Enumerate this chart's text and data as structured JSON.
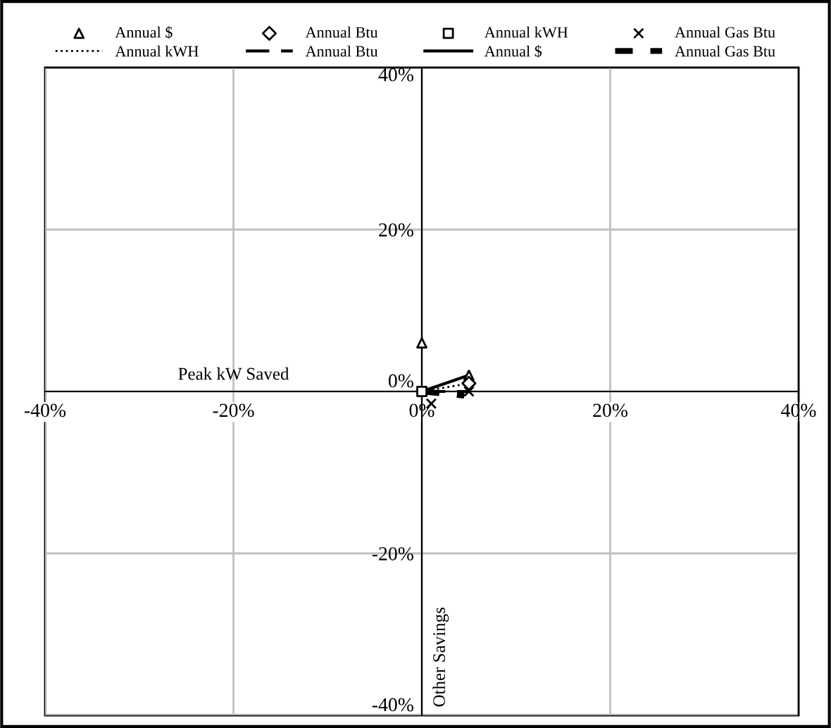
{
  "chart_data": {
    "type": "scatter",
    "xlabel": "Peak kW Saved",
    "ylabel": "Other Savings",
    "xlim": [
      -40,
      40
    ],
    "ylim": [
      -40,
      40
    ],
    "xticks": [
      {
        "value": -40,
        "label": "-40%"
      },
      {
        "value": -20,
        "label": "-20%"
      },
      {
        "value": 0,
        "label": "0%"
      },
      {
        "value": 20,
        "label": "20%"
      },
      {
        "value": 40,
        "label": "40%"
      }
    ],
    "yticks": [
      {
        "value": -40,
        "label": "-40%"
      },
      {
        "value": -20,
        "label": "-20%"
      },
      {
        "value": 0,
        "label": "0%"
      },
      {
        "value": 20,
        "label": "20%"
      },
      {
        "value": 40,
        "label": "40%"
      }
    ],
    "grid": true,
    "legend": "top",
    "series": [
      {
        "name": "Annual $",
        "marker": "triangle",
        "color": "#000000",
        "x": [
          0,
          5
        ],
        "values": [
          6,
          2
        ]
      },
      {
        "name": "Annual Btu",
        "marker": "diamond",
        "color": "#000000",
        "x": [
          5
        ],
        "values": [
          1
        ]
      },
      {
        "name": "Annual kWH",
        "marker": "square",
        "color": "#000000",
        "x": [
          0
        ],
        "values": [
          0
        ]
      },
      {
        "name": "Annual Gas Btu",
        "marker": "cross",
        "color": "#000000",
        "x": [
          1,
          5
        ],
        "values": [
          -1.5,
          0
        ]
      },
      {
        "name": "Annual kWH",
        "type": "line",
        "line_style": "dotted",
        "color": "#000000",
        "x": [
          0,
          5
        ],
        "values": [
          0,
          1
        ]
      },
      {
        "name": "Annual Btu",
        "type": "line",
        "line_style": "dashed",
        "color": "#000000",
        "x": [
          0,
          5
        ],
        "values": [
          0,
          0
        ]
      },
      {
        "name": "Annual $",
        "type": "line",
        "line_style": "solid",
        "color": "#000000",
        "x": [
          0,
          5
        ],
        "values": [
          0,
          2
        ]
      },
      {
        "name": "Annual Gas Btu",
        "type": "line",
        "line_style": "thickdash",
        "color": "#000000",
        "x": [
          0,
          4.5
        ],
        "values": [
          0,
          -0.5
        ]
      }
    ]
  }
}
